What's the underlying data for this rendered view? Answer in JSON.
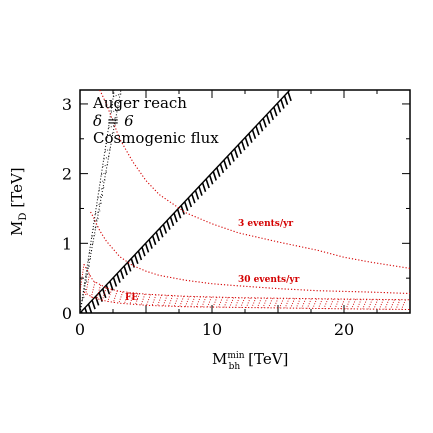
{
  "chart_data": {
    "type": "line",
    "xlabel": "M",
    "xlabel_sup": "min",
    "xlabel_sub": "bh",
    "xlabel_unit": "[TeV]",
    "ylabel": "M",
    "ylabel_sub": "D",
    "ylabel_unit": "[TeV]",
    "xlim": [
      0,
      25
    ],
    "ylim": [
      0,
      3.2
    ],
    "x_ticks": [
      0,
      10,
      20
    ],
    "y_ticks": [
      0,
      1,
      2,
      3
    ],
    "x_tick_labels": [
      "0",
      "10",
      "20"
    ],
    "y_tick_labels": [
      "0",
      "1",
      "2",
      "3"
    ],
    "grid": false,
    "annotations": {
      "line1": "Auger reach",
      "line2": "δ = 6",
      "line3": "Cosmogenic flux"
    },
    "series": [
      {
        "name": "3 events/yr",
        "color": "#d40000",
        "style": "dotted",
        "x": [
          1.5,
          2,
          2.5,
          3,
          4,
          5,
          6,
          8,
          10,
          12,
          15,
          18,
          20,
          22,
          25
        ],
        "y": [
          3.2,
          3.0,
          2.75,
          2.5,
          2.17,
          1.9,
          1.7,
          1.44,
          1.28,
          1.15,
          1.02,
          0.9,
          0.8,
          0.73,
          0.64
        ]
      },
      {
        "name": "30 events/yr",
        "color": "#d40000",
        "style": "dotted",
        "x": [
          0.8,
          1,
          1.5,
          2,
          3,
          4,
          5,
          6,
          8,
          10,
          12,
          15,
          18,
          20,
          22,
          25
        ],
        "y": [
          1.45,
          1.38,
          1.18,
          1.03,
          0.81,
          0.68,
          0.6,
          0.54,
          0.47,
          0.42,
          0.39,
          0.35,
          0.32,
          0.31,
          0.3,
          0.28
        ]
      },
      {
        "name": "FE",
        "color": "#d40000",
        "style": "hatched-band",
        "x": [
          0.3,
          1,
          2,
          3,
          5,
          8,
          12,
          16,
          20,
          25
        ],
        "y_upper": [
          0.7,
          0.46,
          0.36,
          0.31,
          0.27,
          0.24,
          0.22,
          0.21,
          0.2,
          0.19
        ],
        "y_lower": [
          0.3,
          0.22,
          0.17,
          0.14,
          0.11,
          0.09,
          0.08,
          0.07,
          0.06,
          0.05
        ]
      },
      {
        "name": "black hatched boundary",
        "color": "#000000",
        "style": "hatched-line",
        "x": [
          0,
          15.9
        ],
        "y": [
          0,
          3.2
        ]
      },
      {
        "name": "black dotted band",
        "color": "#000000",
        "style": "dotted-band",
        "x": [
          0,
          3.1
        ],
        "y": [
          0,
          3.2
        ],
        "x_inner": [
          0,
          2.6
        ]
      }
    ],
    "labels": {
      "three": "3 events/yr",
      "thirty": "30 events/yr",
      "fe": "FE"
    }
  }
}
